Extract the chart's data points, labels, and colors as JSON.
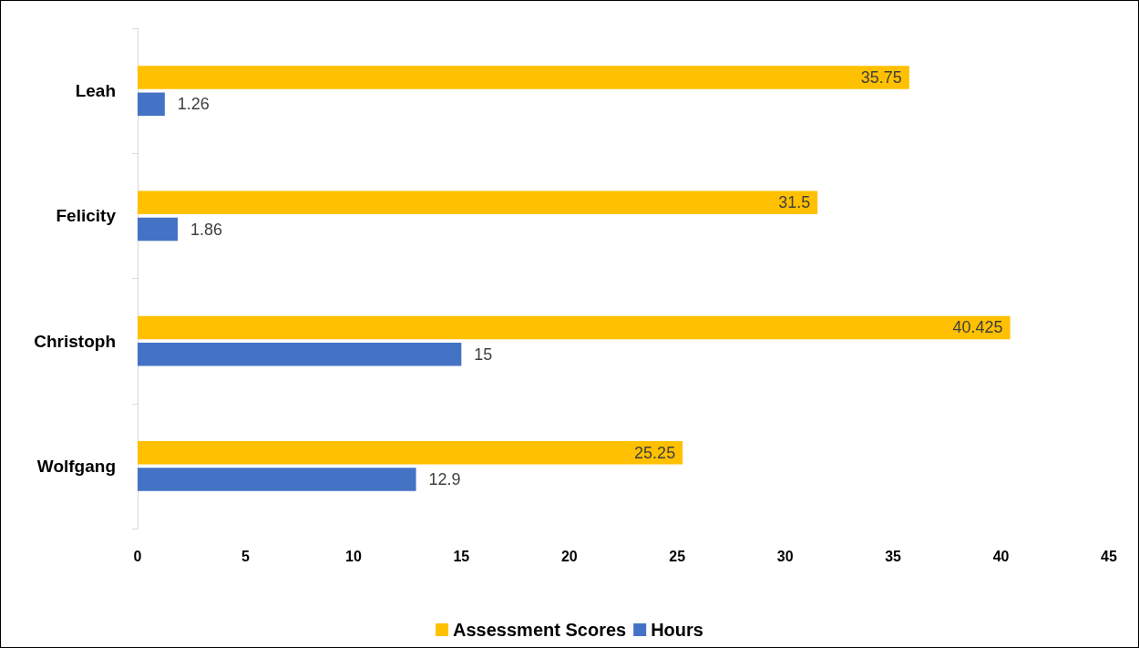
{
  "chart_data": {
    "type": "bar",
    "orientation": "horizontal",
    "categories": [
      "Leah",
      "Felicity",
      "Christoph",
      "Wolfgang"
    ],
    "series": [
      {
        "name": "Assessment Scores",
        "color": "#ffc000",
        "values": [
          35.75,
          31.5,
          40.425,
          25.25
        ]
      },
      {
        "name": "Hours",
        "color": "#4472c4",
        "values": [
          1.26,
          1.86,
          15,
          12.9
        ]
      }
    ],
    "xlim": [
      0,
      45
    ],
    "xticks": [
      0,
      5,
      10,
      15,
      20,
      25,
      30,
      35,
      40,
      45
    ],
    "grid": false,
    "legend": "bottom",
    "data_labels": true
  }
}
